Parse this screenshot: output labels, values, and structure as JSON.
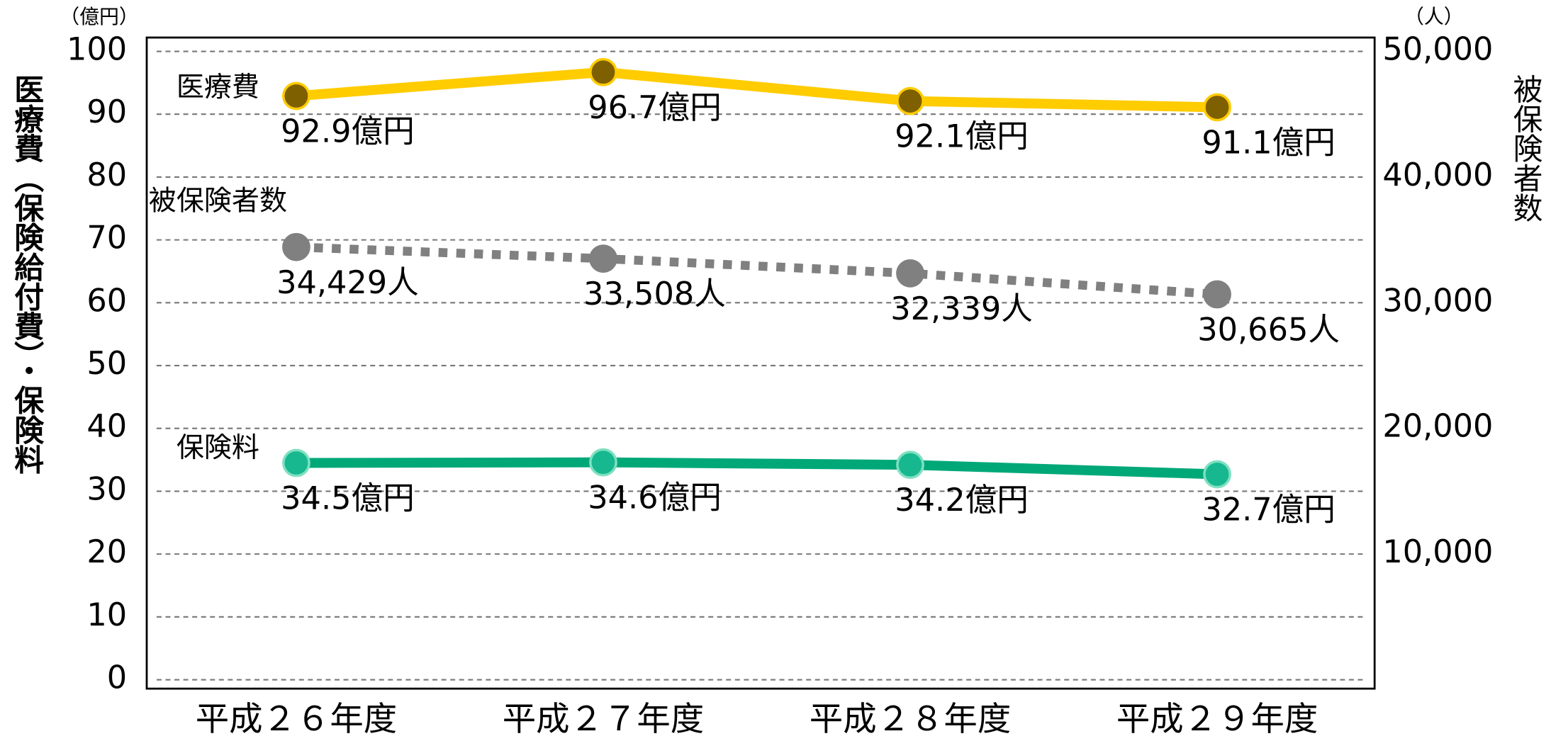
{
  "chart_data": {
    "type": "line",
    "y_unit": "（億円）",
    "y2_unit": "（人）",
    "ylabel": "医療費（保険給付費）・保険料",
    "y2label": "被保険者数",
    "categories": [
      "平成２６年度",
      "平成２７年度",
      "平成２８年度",
      "平成２９年度"
    ],
    "series": [
      {
        "name": "医療費",
        "color": "#FFCC00",
        "marker_color": "#7F6000",
        "dash": false,
        "axis": "y",
        "values": [
          92.9,
          96.7,
          92.1,
          91.1
        ],
        "value_labels": [
          "92.9億円",
          "96.7億円",
          "92.1億円",
          "91.1億円"
        ]
      },
      {
        "name": "被保険者数",
        "color": "#808080",
        "marker_color": "#808080",
        "dash": true,
        "axis": "y2",
        "values": [
          34429,
          33508,
          32339,
          30665
        ],
        "value_labels": [
          "34,429人",
          "33,508人",
          "32,339人",
          "30,665人"
        ]
      },
      {
        "name": "保険料",
        "color": "#00A878",
        "marker_color": "#17B890",
        "dash": false,
        "axis": "y",
        "values": [
          34.5,
          34.6,
          34.2,
          32.7
        ],
        "value_labels": [
          "34.5億円",
          "34.6億円",
          "34.2億円",
          "32.7億円"
        ]
      }
    ],
    "ylim": [
      0,
      100
    ],
    "yticks": [
      0,
      10,
      20,
      30,
      40,
      50,
      60,
      70,
      80,
      90,
      100
    ],
    "y2lim": [
      0,
      50000
    ],
    "y2ticks": [
      {
        "value": 10000,
        "label": "10,000"
      },
      {
        "value": 20000,
        "label": "20,000"
      },
      {
        "value": 30000,
        "label": "30,000"
      },
      {
        "value": 40000,
        "label": "40,000"
      },
      {
        "value": 50000,
        "label": "50,000"
      }
    ],
    "grid": true
  }
}
